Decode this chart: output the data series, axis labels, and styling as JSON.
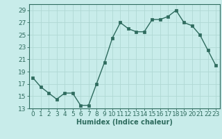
{
  "x": [
    0,
    1,
    2,
    3,
    4,
    5,
    6,
    7,
    8,
    9,
    10,
    11,
    12,
    13,
    14,
    15,
    16,
    17,
    18,
    19,
    20,
    21,
    22,
    23
  ],
  "y": [
    18.0,
    16.5,
    15.5,
    14.5,
    15.5,
    15.5,
    13.5,
    13.5,
    17.0,
    20.5,
    24.5,
    27.0,
    26.0,
    25.5,
    25.5,
    27.5,
    27.5,
    28.0,
    29.0,
    27.0,
    26.5,
    25.0,
    22.5,
    20.0
  ],
  "line_color": "#2e6b5e",
  "bg_color": "#c8ecea",
  "grid_color": "#b0d8d4",
  "xlabel": "Humidex (Indice chaleur)",
  "ylim": [
    13,
    30
  ],
  "xlim": [
    -0.5,
    23.5
  ],
  "yticks": [
    13,
    15,
    17,
    19,
    21,
    23,
    25,
    27,
    29
  ],
  "xticks": [
    0,
    1,
    2,
    3,
    4,
    5,
    6,
    7,
    8,
    9,
    10,
    11,
    12,
    13,
    14,
    15,
    16,
    17,
    18,
    19,
    20,
    21,
    22,
    23
  ],
  "xlabel_fontsize": 7,
  "tick_fontsize": 6.5,
  "marker_size": 2.5,
  "linewidth": 1.0
}
